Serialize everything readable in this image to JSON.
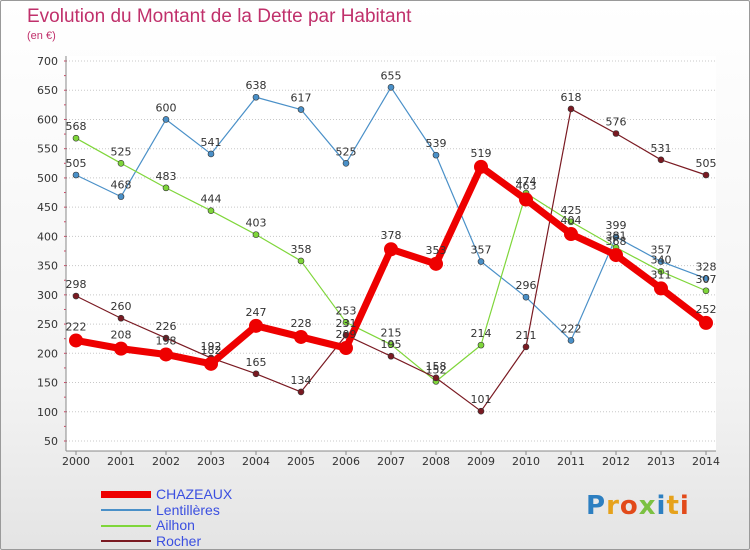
{
  "chart_data": {
    "type": "line",
    "title": "Evolution du Montant de la Dette par Habitant",
    "subtitle": "(en €)",
    "x": [
      "2000",
      "2001",
      "2002",
      "2003",
      "2004",
      "2005",
      "2006",
      "2007",
      "2008",
      "2009",
      "2010",
      "2011",
      "2012",
      "2013",
      "2014"
    ],
    "ylim": [
      50,
      700
    ],
    "yticks": [
      50,
      100,
      150,
      200,
      250,
      300,
      350,
      400,
      450,
      500,
      550,
      600,
      650,
      700
    ],
    "grid": "horizontal",
    "legend_position": "bottom-left",
    "series": [
      {
        "name": "CHAZEAUX",
        "color": "#ee0000",
        "values": [
          222,
          208,
          198,
          182,
          247,
          228,
          209,
          378,
          353,
          519,
          463,
          404,
          368,
          311,
          252
        ],
        "labels": [
          "222",
          "208",
          "198",
          "182",
          "247",
          "228",
          "209",
          "378",
          "353",
          "519",
          "463",
          "404",
          "368",
          "311",
          "252"
        ]
      },
      {
        "name": "Lentillères",
        "color": "#4a90c8",
        "values": [
          505,
          468,
          600,
          541,
          638,
          617,
          525,
          655,
          539,
          357,
          296,
          222,
          399,
          357,
          328
        ],
        "labels": [
          "505",
          "468",
          "600",
          "541",
          "638",
          "617",
          "525",
          "655",
          "539",
          "357",
          "296",
          "222",
          "399",
          "357",
          "328"
        ]
      },
      {
        "name": "Ailhon",
        "color": "#7fd63a",
        "values": [
          568,
          525,
          483,
          444,
          403,
          358,
          253,
          215,
          152,
          214,
          474,
          425,
          381,
          340,
          307
        ],
        "labels": [
          "568",
          "525",
          "483",
          "444",
          "403",
          "358",
          "253",
          "215",
          "152",
          "214",
          "474",
          "425",
          "381",
          "340",
          "307"
        ]
      },
      {
        "name": "Rocher",
        "color": "#7a1a22",
        "values": [
          298,
          260,
          226,
          192,
          165,
          134,
          231,
          195,
          158,
          101,
          211,
          618,
          576,
          531,
          505
        ],
        "labels": [
          "298",
          "260",
          "226",
          "192",
          "165",
          "134",
          "231",
          "195",
          "158",
          "101",
          "211",
          "618",
          "576",
          "531",
          "505"
        ]
      }
    ]
  },
  "logo": {
    "text": "Proxiti",
    "letter_colors": [
      "#2d7fc1",
      "#e6a21c",
      "#e24a1a",
      "#7cc142",
      "#2d7fc1",
      "#e6a21c",
      "#e24a1a"
    ]
  }
}
